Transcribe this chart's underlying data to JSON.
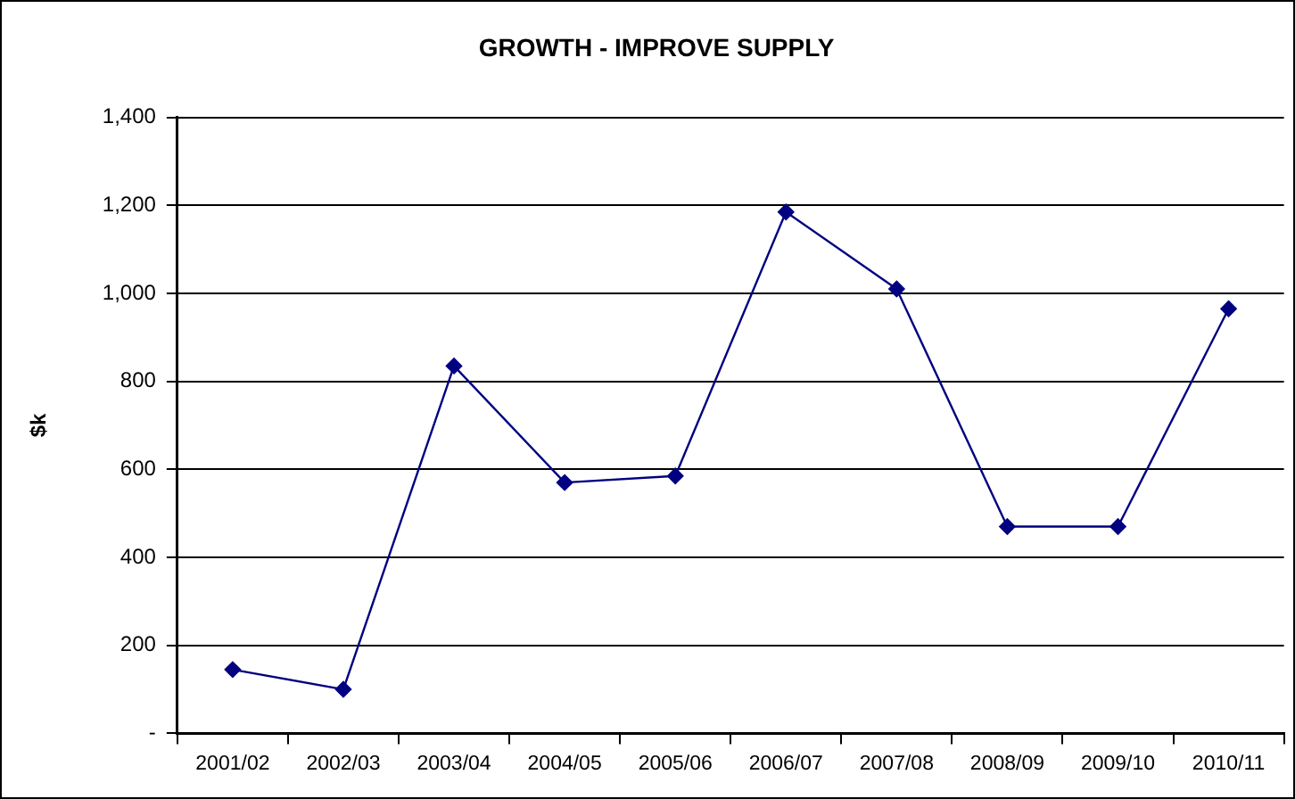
{
  "chart_data": {
    "type": "line",
    "title": "GROWTH - IMPROVE SUPPLY",
    "ylabel": "$k",
    "categories": [
      "2001/02",
      "2002/03",
      "2003/04",
      "2004/05",
      "2005/06",
      "2006/07",
      "2007/08",
      "2008/09",
      "2009/10",
      "2010/11"
    ],
    "series": [
      {
        "color": "#000080",
        "values": [
          145,
          100,
          835,
          570,
          585,
          1185,
          1010,
          470,
          470,
          965
        ]
      }
    ],
    "ylim": [
      0,
      1400
    ],
    "yticks": [
      {
        "value": 0,
        "label": "-"
      },
      {
        "value": 200,
        "label": "200"
      },
      {
        "value": 400,
        "label": "400"
      },
      {
        "value": 600,
        "label": "600"
      },
      {
        "value": 800,
        "label": "800"
      },
      {
        "value": 1000,
        "label": "1,000"
      },
      {
        "value": 1200,
        "label": "1,200"
      },
      {
        "value": 1400,
        "label": "1,400"
      }
    ],
    "grid": "y",
    "legend": false,
    "marker": "diamond",
    "line_style": "solid"
  }
}
